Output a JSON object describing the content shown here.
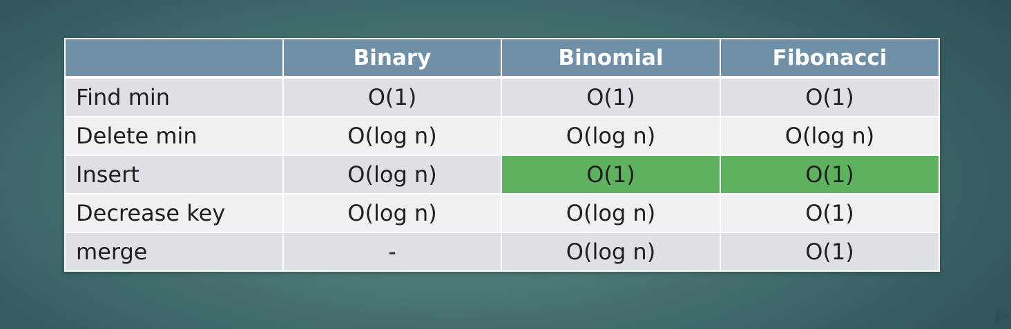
{
  "table": {
    "header": [
      "",
      "Binary",
      "Binomial",
      "Fibonacci"
    ],
    "rows": [
      {
        "label": "Find min",
        "cells": [
          "O(1)",
          "O(1)",
          "O(1)"
        ]
      },
      {
        "label": "Delete min",
        "cells": [
          "O(log n)",
          "O(log n)",
          "O(log n)"
        ]
      },
      {
        "label": "Insert",
        "cells": [
          "O(log n)",
          "O(1)",
          "O(1)"
        ],
        "highlight_color": "#5eb25f"
      },
      {
        "label": "Decrease key",
        "cells": [
          "O(log n)",
          "O(log n)",
          "O(1)"
        ]
      },
      {
        "label": "merge",
        "cells": [
          "-",
          "O(log n)",
          "O(1)"
        ]
      }
    ]
  },
  "colors": {
    "header_background": "#6f90a6",
    "row_odd": "#dde1e5",
    "row_even": "#eef0f2",
    "highlight": "#5eb25f"
  },
  "icons": {
    "next_slide": "right-triangle-icon"
  }
}
